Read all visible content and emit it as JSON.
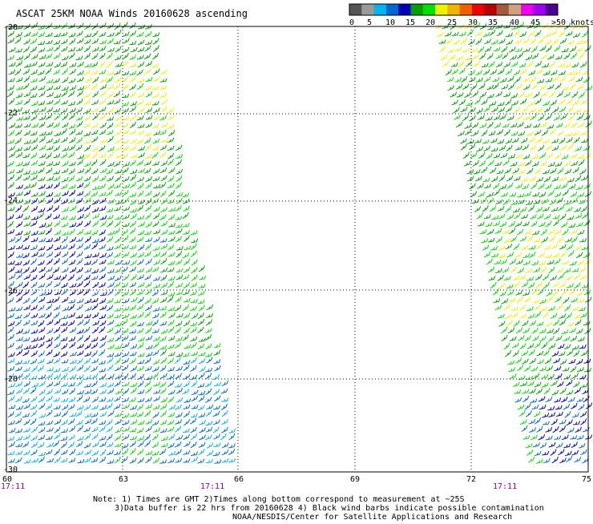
{
  "title": "ASCAT 25KM NOAA Winds 20160628 ascending",
  "legend": {
    "colors": [
      "#555555",
      "#9a9a9a",
      "#00b4f0",
      "#0068d0",
      "#0000b4",
      "#00a000",
      "#00e000",
      "#f0f000",
      "#f0b400",
      "#f06000",
      "#f00000",
      "#b40000",
      "#a05a3c",
      "#d0a080",
      "#f000f0",
      "#a000f0",
      "#500090"
    ],
    "labels": [
      "0",
      "5",
      "10",
      "15",
      "20",
      "25",
      "30",
      "35",
      "40",
      "45",
      ">50 knots"
    ]
  },
  "axes": {
    "x_ticks": [
      "60",
      "63",
      "66",
      "69",
      "72",
      "75"
    ],
    "y_ticks": [
      "-20",
      "-22",
      "-24",
      "-26",
      "-28",
      "-30"
    ],
    "pass_times": [
      "17:11",
      "17:11",
      "17:11"
    ]
  },
  "notes": {
    "line1": "Note: 1) Times are GMT 2)Times along bottom correspond to measurement at ~25S",
    "line2": "3)Data buffer is 22 hrs from 20160628 4) Black wind barbs indicate possible contamination",
    "line3": "NOAA/NESDIS/Center for Satellite Applications and Research"
  }
}
